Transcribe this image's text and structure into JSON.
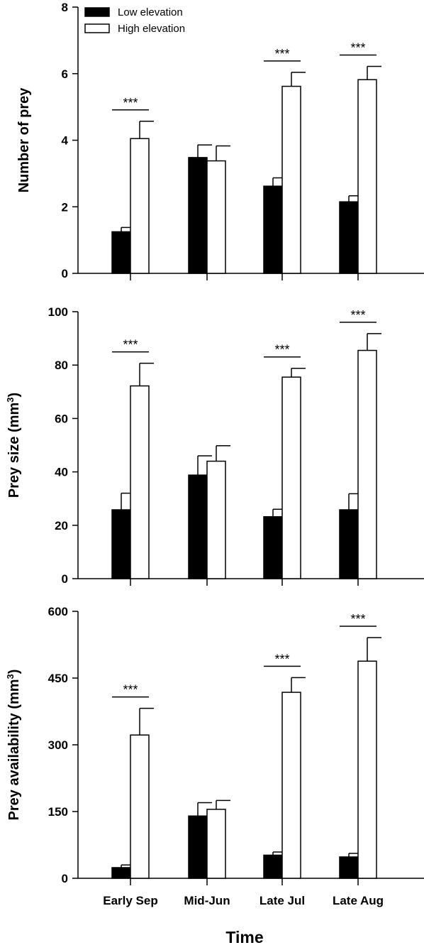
{
  "chart_data": [
    {
      "type": "bar",
      "ylabel": "Number of prey",
      "ylim": [
        0,
        8
      ],
      "yticks": [
        0,
        2,
        4,
        6,
        8
      ],
      "categories": [
        "Early Sep",
        "Mid-Jun",
        "Late Jul",
        "Late Aug"
      ],
      "series": [
        {
          "name": "Low elevation",
          "color": "#000000",
          "values": [
            1.25,
            3.48,
            2.62,
            2.15
          ],
          "errors": [
            0.13,
            0.38,
            0.25,
            0.18
          ]
        },
        {
          "name": "High elevation",
          "color": "#ffffff",
          "values": [
            4.05,
            3.38,
            5.62,
            5.82
          ],
          "errors": [
            0.52,
            0.45,
            0.42,
            0.4
          ]
        }
      ],
      "significance": [
        "***",
        "",
        "***",
        "***"
      ],
      "legend": "top-left"
    },
    {
      "type": "bar",
      "ylabel": "Prey size (mm",
      "ylabel_sup": "3",
      "ylabel_end": ")",
      "ylim": [
        0,
        100
      ],
      "yticks": [
        0,
        20,
        40,
        60,
        80,
        100
      ],
      "categories": [
        "Early Sep",
        "Mid-Jun",
        "Late Jul",
        "Late Aug"
      ],
      "series": [
        {
          "name": "Low elevation",
          "color": "#000000",
          "values": [
            25.8,
            38.8,
            23.2,
            25.8
          ],
          "errors": [
            6.2,
            7.2,
            2.8,
            6.0
          ]
        },
        {
          "name": "High elevation",
          "color": "#ffffff",
          "values": [
            72.2,
            44.0,
            75.5,
            85.5
          ],
          "errors": [
            8.5,
            5.8,
            3.3,
            6.3
          ]
        }
      ],
      "significance": [
        "***",
        "",
        "***",
        "***"
      ]
    },
    {
      "type": "bar",
      "ylabel": "Prey availability (mm",
      "ylabel_sup": "3",
      "ylabel_end": ")",
      "xlabel": "Time",
      "ylim": [
        0,
        600
      ],
      "yticks": [
        0,
        150,
        300,
        450,
        600
      ],
      "categories": [
        "Early Sep",
        "Mid-Jun",
        "Late Jul",
        "Late Aug"
      ],
      "series": [
        {
          "name": "Low elevation",
          "color": "#000000",
          "values": [
            24,
            140,
            52,
            48
          ],
          "errors": [
            6,
            30,
            7,
            8
          ]
        },
        {
          "name": "High elevation",
          "color": "#ffffff",
          "values": [
            322,
            155,
            418,
            488
          ],
          "errors": [
            60,
            20,
            33,
            53
          ]
        }
      ],
      "significance": [
        "***",
        "",
        "***",
        "***"
      ]
    }
  ]
}
